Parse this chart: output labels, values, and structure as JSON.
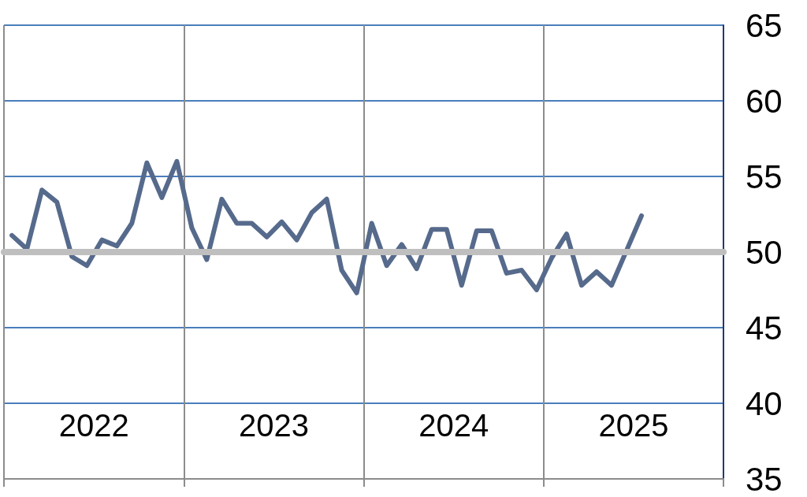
{
  "chart_data": {
    "type": "line",
    "x": [
      "2022-01",
      "2022-02",
      "2022-03",
      "2022-04",
      "2022-05",
      "2022-06",
      "2022-07",
      "2022-08",
      "2022-09",
      "2022-10",
      "2022-11",
      "2022-12",
      "2023-01",
      "2023-02",
      "2023-03",
      "2023-04",
      "2023-05",
      "2023-06",
      "2023-07",
      "2023-08",
      "2023-09",
      "2023-10",
      "2023-11",
      "2023-12",
      "2024-01",
      "2024-02",
      "2024-03",
      "2024-04",
      "2024-05",
      "2024-06",
      "2024-07",
      "2024-08",
      "2024-09",
      "2024-10",
      "2024-11",
      "2024-12",
      "2025-01",
      "2025-02",
      "2025-03",
      "2025-04",
      "2025-05",
      "2025-06",
      "2025-07"
    ],
    "series": [
      {
        "color": "#566a8c",
        "values": [
          51.1,
          50.2,
          54.1,
          53.3,
          49.7,
          49.1,
          50.8,
          50.4,
          51.9,
          55.9,
          53.6,
          56.0,
          51.6,
          49.5,
          53.5,
          51.9,
          51.9,
          51.0,
          52.0,
          50.8,
          52.6,
          53.5,
          48.8,
          47.3,
          51.9,
          49.1,
          50.5,
          48.9,
          51.5,
          51.5,
          47.8,
          51.4,
          51.4,
          48.6,
          48.8,
          47.5,
          49.6,
          51.2,
          47.8,
          48.7,
          47.8,
          50.1,
          52.4
        ]
      }
    ],
    "xlim": [
      "2021-12-15",
      "2025-12-15"
    ],
    "xticks": [
      {
        "value": "2021-12-15",
        "label": null
      },
      {
        "value": "2022-06-15",
        "label": "2022"
      },
      {
        "value": "2022-12-15",
        "label": null
      },
      {
        "value": "2023-06-15",
        "label": "2023"
      },
      {
        "value": "2023-12-15",
        "label": null
      },
      {
        "value": "2024-06-15",
        "label": "2024"
      },
      {
        "value": "2024-12-15",
        "label": null
      },
      {
        "value": "2025-06-15",
        "label": "2025"
      },
      {
        "value": "2025-12-15",
        "label": null
      }
    ],
    "ylim": [
      35,
      65
    ],
    "yticks": [
      35,
      40,
      45,
      50,
      55,
      60,
      65
    ],
    "ref_lines": [
      {
        "axis": "y",
        "value": 50,
        "label": null,
        "color": "#bfbfbf"
      }
    ],
    "grid": true,
    "marker": "none",
    "line_style": "solid"
  }
}
